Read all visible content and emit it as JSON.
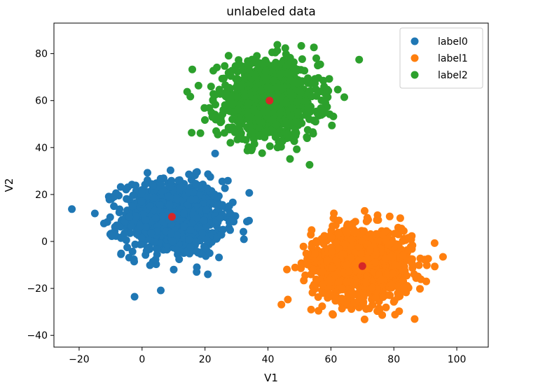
{
  "chart_data": {
    "type": "scatter",
    "title": "unlabeled data",
    "xlabel": "V1",
    "ylabel": "V2",
    "xlim": [
      -28,
      110
    ],
    "ylim": [
      -45,
      93
    ],
    "xticks": [
      -20,
      0,
      20,
      40,
      60,
      80,
      100
    ],
    "yticks": [
      -40,
      -20,
      0,
      20,
      40,
      60,
      80
    ],
    "legend_position": "top-right",
    "series": [
      {
        "name": "label0",
        "color": "#1f77b4",
        "center": [
          10,
          10
        ],
        "spread": [
          8,
          8
        ],
        "count": 1000
      },
      {
        "name": "label1",
        "color": "#ff7f0e",
        "center": [
          70,
          -10
        ],
        "spread": [
          8,
          8
        ],
        "count": 1000
      },
      {
        "name": "label2",
        "color": "#2ca02c",
        "center": [
          40,
          60
        ],
        "spread": [
          8,
          8
        ],
        "count": 1000
      }
    ],
    "centroids": {
      "color": "#d62728",
      "points": [
        [
          9.5,
          10.5
        ],
        [
          70,
          -10.5
        ],
        [
          40.5,
          60
        ]
      ]
    }
  }
}
